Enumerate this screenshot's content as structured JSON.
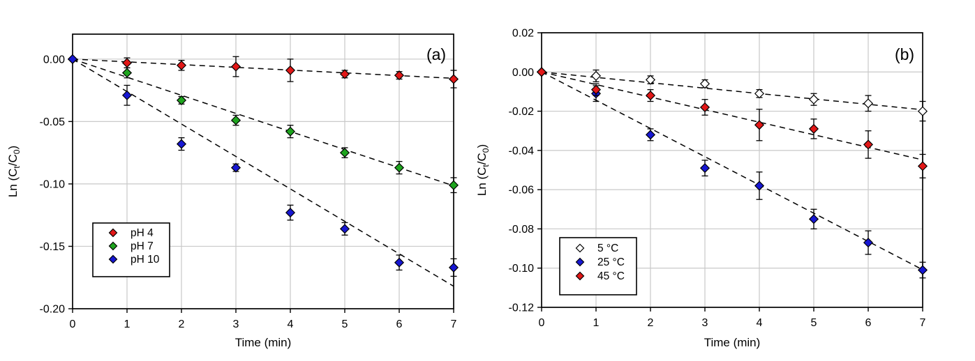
{
  "figure": {
    "background": "#ffffff",
    "panel_count": 2
  },
  "colors": {
    "grid": "#c9c9c9",
    "axis": "#000000",
    "red": "#e11717",
    "green": "#1ea41e",
    "blue": "#1717d2",
    "open_marker": "#ffffff",
    "trend_line": "#000000"
  },
  "chart_data": [
    {
      "type": "scatter",
      "panel_label": "(a)",
      "xlabel": "Time (min)",
      "ylabel": "Ln (Ct/C0)",
      "ylabel_parts": [
        {
          "text": "Ln (C"
        },
        {
          "text": "t",
          "sub": true
        },
        {
          "text": "/C"
        },
        {
          "text": "0",
          "sub": true
        },
        {
          "text": ")"
        }
      ],
      "xlim": [
        0,
        7
      ],
      "ylim": [
        -0.2,
        0.02
      ],
      "x_ticks": [
        0,
        1,
        2,
        3,
        4,
        5,
        6,
        7
      ],
      "y_ticks": [
        0.0,
        -0.05,
        -0.1,
        -0.15,
        -0.2
      ],
      "y_tick_labels": [
        "0.00",
        "-0.05",
        "-0.10",
        "-0.15",
        "-0.20"
      ],
      "grid": true,
      "legend_position": "lower-left",
      "series": [
        {
          "name": "pH 4",
          "marker": "diamond",
          "fill": "#e11717",
          "x": [
            0,
            1,
            2,
            3,
            4,
            5,
            6,
            7
          ],
          "y": [
            0.0,
            -0.003,
            -0.005,
            -0.006,
            -0.009,
            -0.012,
            -0.013,
            -0.016
          ],
          "yerr": [
            0,
            0.004,
            0.004,
            0.008,
            0.009,
            0.003,
            0.003,
            0.007
          ],
          "trend": {
            "slope": -0.0022,
            "intercept": 0,
            "style": "dashed"
          }
        },
        {
          "name": "pH 7",
          "marker": "diamond",
          "fill": "#1ea41e",
          "x": [
            0,
            1,
            2,
            3,
            4,
            5,
            6,
            7
          ],
          "y": [
            0.0,
            -0.011,
            -0.033,
            -0.049,
            -0.058,
            -0.075,
            -0.087,
            -0.101
          ],
          "yerr": [
            0,
            0.004,
            0.003,
            0.004,
            0.005,
            0.004,
            0.005,
            0.006
          ],
          "trend": {
            "slope": -0.0145,
            "intercept": 0,
            "style": "dashed"
          }
        },
        {
          "name": "pH 10",
          "marker": "diamond",
          "fill": "#1717d2",
          "x": [
            0,
            1,
            2,
            3,
            4,
            5,
            6,
            7
          ],
          "y": [
            0.0,
            -0.029,
            -0.068,
            -0.087,
            -0.123,
            -0.136,
            -0.163,
            -0.167
          ],
          "yerr": [
            0,
            0.008,
            0.005,
            0.003,
            0.006,
            0.005,
            0.006,
            0.007
          ],
          "trend": {
            "slope": -0.026,
            "intercept": 0,
            "style": "dashed"
          }
        }
      ]
    },
    {
      "type": "scatter",
      "panel_label": "(b)",
      "xlabel": "Time (min)",
      "ylabel": "Ln (Ct/C0)",
      "ylabel_parts": [
        {
          "text": "Ln (C"
        },
        {
          "text": "t",
          "sub": true
        },
        {
          "text": "/C"
        },
        {
          "text": "0",
          "sub": true
        },
        {
          "text": ")"
        }
      ],
      "xlim": [
        0,
        7
      ],
      "ylim": [
        -0.12,
        0.02
      ],
      "x_ticks": [
        0,
        1,
        2,
        3,
        4,
        5,
        6,
        7
      ],
      "y_ticks": [
        0.02,
        0.0,
        -0.02,
        -0.04,
        -0.06,
        -0.08,
        -0.1,
        -0.12
      ],
      "y_tick_labels": [
        "0.02",
        "0.00",
        "-0.02",
        "-0.04",
        "-0.06",
        "-0.08",
        "-0.10",
        "-0.12"
      ],
      "grid": true,
      "legend_position": "lower-left",
      "series": [
        {
          "name": "5 °C",
          "marker": "diamond",
          "fill": "#ffffff",
          "x": [
            0,
            1,
            2,
            3,
            4,
            5,
            6,
            7
          ],
          "y": [
            0.0,
            -0.002,
            -0.004,
            -0.006,
            -0.011,
            -0.014,
            -0.016,
            -0.02
          ],
          "yerr": [
            0,
            0.003,
            0.002,
            0.002,
            0.002,
            0.003,
            0.004,
            0.005
          ],
          "trend": {
            "slope": -0.00275,
            "intercept": 0,
            "style": "dashed"
          }
        },
        {
          "name": "25 °C",
          "marker": "diamond",
          "fill": "#1717d2",
          "x": [
            0,
            1,
            2,
            3,
            4,
            5,
            6,
            7
          ],
          "y": [
            0.0,
            -0.011,
            -0.032,
            -0.049,
            -0.058,
            -0.075,
            -0.087,
            -0.101
          ],
          "yerr": [
            0,
            0.004,
            0.003,
            0.004,
            0.007,
            0.005,
            0.006,
            0.004
          ],
          "trend": {
            "slope": -0.0144,
            "intercept": 0,
            "style": "dashed"
          }
        },
        {
          "name": "45 °C",
          "marker": "diamond",
          "fill": "#e11717",
          "x": [
            0,
            1,
            2,
            3,
            4,
            5,
            6,
            7
          ],
          "y": [
            0.0,
            -0.009,
            -0.012,
            -0.018,
            -0.027,
            -0.029,
            -0.037,
            -0.048
          ],
          "yerr": [
            0,
            0.003,
            0.003,
            0.004,
            0.008,
            0.005,
            0.007,
            0.006
          ],
          "trend": {
            "slope": -0.0064,
            "intercept": 0,
            "style": "dashed"
          }
        }
      ]
    }
  ]
}
